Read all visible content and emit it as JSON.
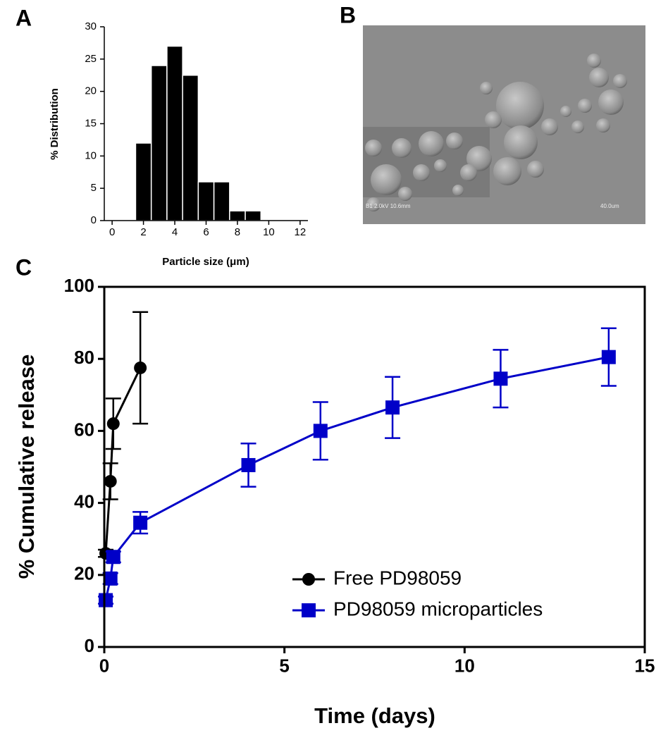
{
  "chart_data": [
    {
      "type": "histogram",
      "panel_label": "A",
      "x_label": "Particle size (μm)",
      "y_label": "% Distribution",
      "bins": [
        1.5,
        2.5,
        3.5,
        4.5,
        5.5,
        6.5,
        7.5,
        8.5,
        9.5
      ],
      "values": [
        12,
        24,
        27,
        22.5,
        6,
        6,
        1.5,
        1.5
      ],
      "color": "#000000",
      "xlim": [
        -0.5,
        12.5
      ],
      "xticks": [
        0,
        2,
        4,
        6,
        8,
        10,
        12
      ],
      "ylim": [
        0,
        30
      ],
      "yticks": [
        0,
        5,
        10,
        15,
        20,
        25,
        30
      ]
    },
    {
      "type": "line",
      "panel_label": "C",
      "x_label": "Time (days)",
      "y_label": "% Cumulative release",
      "xlim": [
        0,
        15
      ],
      "xticks": [
        0,
        5,
        10,
        15
      ],
      "ylim": [
        0,
        100
      ],
      "yticks": [
        0,
        20,
        40,
        60,
        80,
        100
      ],
      "frame": true,
      "legend": "lower right",
      "series": [
        {
          "name": "Free PD98059",
          "color": "#000000",
          "marker": "circle",
          "x": [
            0.04,
            0.17,
            0.25,
            1
          ],
          "values": [
            26,
            46,
            62,
            77.5
          ],
          "errors": [
            1,
            5,
            7,
            15.5
          ]
        },
        {
          "name": "PD98059 microparticles",
          "color": "#0000c8",
          "marker": "square",
          "x": [
            0.04,
            0.17,
            0.25,
            1,
            4,
            6,
            8,
            11,
            14
          ],
          "values": [
            13,
            19,
            25,
            34.5,
            50.5,
            60,
            66.5,
            74.5,
            80.5
          ],
          "errors": [
            1,
            1.5,
            1.5,
            3,
            6,
            8,
            8.5,
            8,
            8
          ]
        }
      ]
    }
  ],
  "image_panel": {
    "panel_label": "B",
    "info": "B1 2.0kV 10.6mm",
    "scale": "40.0um"
  }
}
